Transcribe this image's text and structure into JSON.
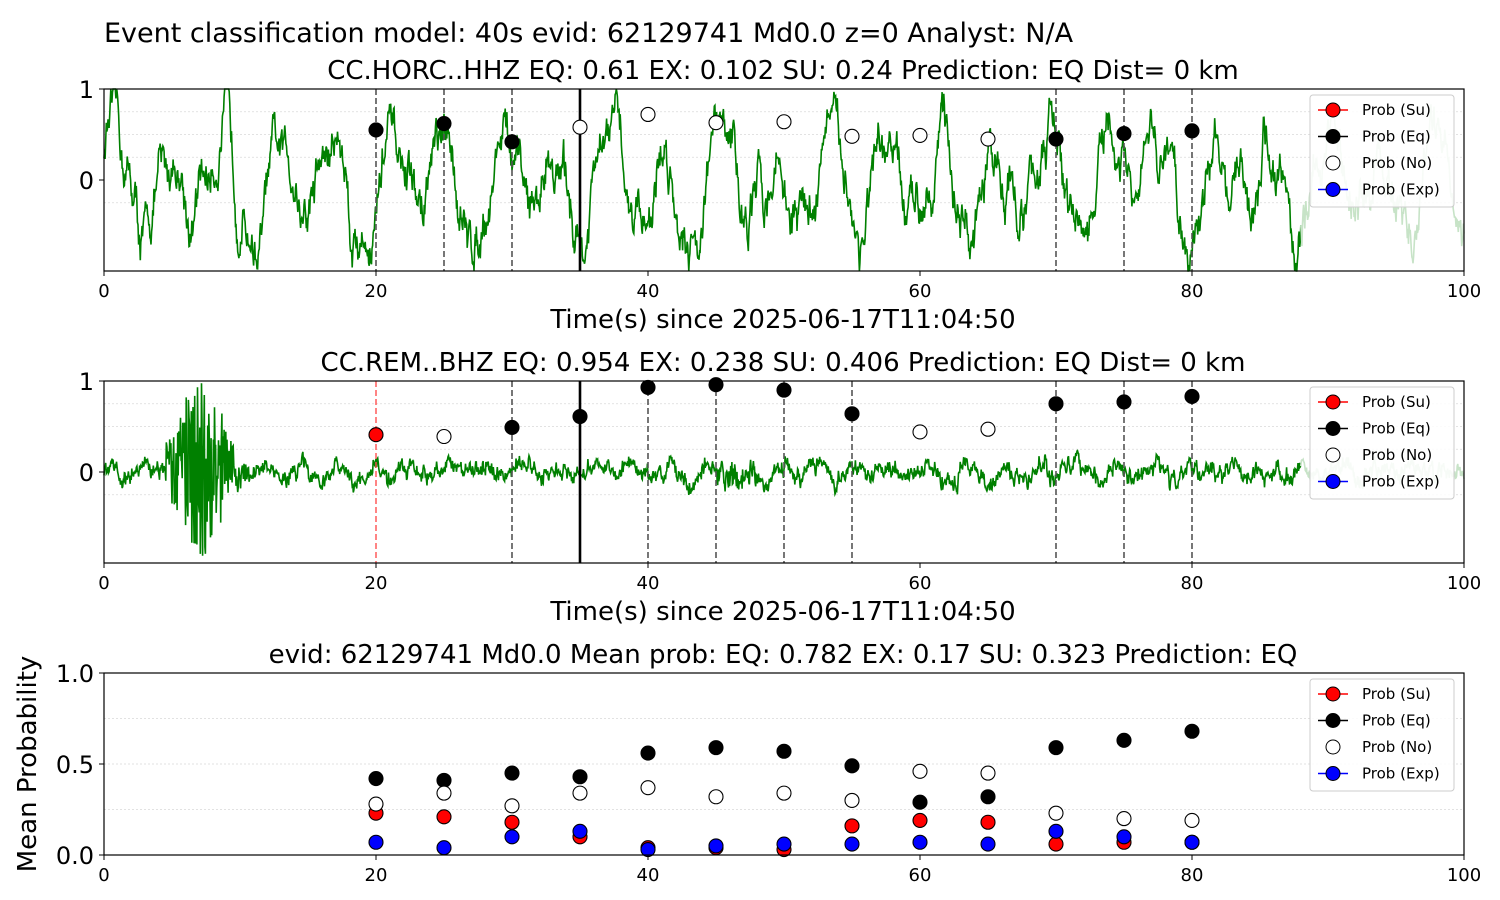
{
  "suptitle": "Event classification model: 40s evid: 62129741 Md0.0 z=0 Analyst: N/A",
  "colors": {
    "su": "#ff0000",
    "eq": "#000000",
    "no": "#ffffff",
    "exp": "#0000ff",
    "waveform": "#008000",
    "waveform_faded": "#c7e3c7",
    "grid": "#d9d9d9"
  },
  "legend": {
    "position": "upper right",
    "items": [
      "Prob (Su)",
      "Prob (Eq)",
      "Prob (No)",
      "Prob (Exp)"
    ]
  },
  "chart_data": [
    {
      "type": "line",
      "title": "CC.HORC..HHZ   EQ: 0.61  EX: 0.102  SU: 0.24   Prediction: EQ    Dist= 0 km",
      "xlabel": "Time(s) since 2025-06-17T11:04:50",
      "ylabel": "",
      "xlim": [
        0,
        100
      ],
      "ylim": [
        -1,
        1
      ],
      "xticks": [
        "0",
        "20",
        "40",
        "60",
        "80",
        "100"
      ],
      "yticks": [
        "1",
        "0"
      ],
      "grid": "horizontal dotted",
      "waveform": {
        "style": "long-period noise",
        "faded_after": 88
      },
      "pick_line_x": 35,
      "windows": [
        {
          "x": 20,
          "label": "eq",
          "line": "eq",
          "y": 0.55
        },
        {
          "x": 25,
          "label": "eq",
          "line": "eq",
          "y": 0.62
        },
        {
          "x": 30,
          "label": "eq",
          "line": "eq",
          "y": 0.42
        },
        {
          "x": 35,
          "label": "no",
          "line": "pick",
          "y": 0.58
        },
        {
          "x": 40,
          "label": "no",
          "line": "none",
          "y": 0.72
        },
        {
          "x": 45,
          "label": "no",
          "line": "none",
          "y": 0.63
        },
        {
          "x": 50,
          "label": "no",
          "line": "none",
          "y": 0.64
        },
        {
          "x": 55,
          "label": "no",
          "line": "none",
          "y": 0.48
        },
        {
          "x": 60,
          "label": "no",
          "line": "none",
          "y": 0.49
        },
        {
          "x": 65,
          "label": "no",
          "line": "none",
          "y": 0.45
        },
        {
          "x": 70,
          "label": "eq",
          "line": "eq",
          "y": 0.45
        },
        {
          "x": 75,
          "label": "eq",
          "line": "eq",
          "y": 0.51
        },
        {
          "x": 80,
          "label": "eq",
          "line": "eq",
          "y": 0.54
        }
      ]
    },
    {
      "type": "line",
      "title": "CC.REM..BHZ   EQ: 0.954  EX: 0.238  SU: 0.406   Prediction: EQ    Dist= 0 km",
      "xlabel": "Time(s) since 2025-06-17T11:04:50",
      "ylabel": "",
      "xlim": [
        0,
        100
      ],
      "ylim": [
        -1,
        1
      ],
      "xticks": [
        "0",
        "20",
        "40",
        "60",
        "80",
        "100"
      ],
      "yticks": [
        "1",
        "0"
      ],
      "grid": "horizontal dotted",
      "waveform": {
        "style": "short burst near 5-10 s then low noise",
        "faded_after": 88
      },
      "pick_line_x": 35,
      "windows": [
        {
          "x": 20,
          "label": "su",
          "line": "su",
          "y": 0.41
        },
        {
          "x": 25,
          "label": "no",
          "line": "none",
          "y": 0.39
        },
        {
          "x": 30,
          "label": "eq",
          "line": "eq",
          "y": 0.49
        },
        {
          "x": 35,
          "label": "eq",
          "line": "pick",
          "y": 0.61
        },
        {
          "x": 40,
          "label": "eq",
          "line": "eq",
          "y": 0.93
        },
        {
          "x": 45,
          "label": "eq",
          "line": "eq",
          "y": 0.96
        },
        {
          "x": 50,
          "label": "eq",
          "line": "eq",
          "y": 0.9
        },
        {
          "x": 55,
          "label": "eq",
          "line": "eq",
          "y": 0.64
        },
        {
          "x": 60,
          "label": "no",
          "line": "none",
          "y": 0.44
        },
        {
          "x": 65,
          "label": "no",
          "line": "none",
          "y": 0.47
        },
        {
          "x": 70,
          "label": "eq",
          "line": "eq",
          "y": 0.75
        },
        {
          "x": 75,
          "label": "eq",
          "line": "eq",
          "y": 0.77
        },
        {
          "x": 80,
          "label": "eq",
          "line": "eq",
          "y": 0.83
        }
      ]
    },
    {
      "type": "scatter",
      "title": "evid: 62129741  Md0.0   Mean prob:   EQ: 0.782  EX: 0.17  SU: 0.323   Prediction: EQ",
      "xlabel": "",
      "ylabel": "Mean Probability",
      "xlim": [
        0,
        100
      ],
      "ylim": [
        0,
        1
      ],
      "xticks": [
        "0",
        "20",
        "40",
        "60",
        "80",
        "100"
      ],
      "yticks": [
        "0.0",
        "0.5",
        "1.0"
      ],
      "grid": "horizontal dotted",
      "x": [
        20,
        25,
        30,
        35,
        40,
        45,
        50,
        55,
        60,
        65,
        70,
        75,
        80
      ],
      "series": [
        {
          "name": "Prob (Su)",
          "key": "su",
          "values": [
            0.23,
            0.21,
            0.18,
            0.1,
            0.04,
            0.04,
            0.03,
            0.16,
            0.19,
            0.18,
            0.06,
            0.07,
            0.07
          ]
        },
        {
          "name": "Prob (Eq)",
          "key": "eq",
          "values": [
            0.42,
            0.41,
            0.45,
            0.43,
            0.56,
            0.59,
            0.57,
            0.49,
            0.29,
            0.32,
            0.59,
            0.63,
            0.68
          ]
        },
        {
          "name": "Prob (No)",
          "key": "no",
          "values": [
            0.28,
            0.34,
            0.27,
            0.34,
            0.37,
            0.32,
            0.34,
            0.3,
            0.46,
            0.45,
            0.23,
            0.2,
            0.19
          ]
        },
        {
          "name": "Prob (Exp)",
          "key": "exp",
          "values": [
            0.07,
            0.04,
            0.1,
            0.13,
            0.03,
            0.05,
            0.06,
            0.06,
            0.07,
            0.06,
            0.13,
            0.1,
            0.07
          ]
        }
      ]
    }
  ]
}
